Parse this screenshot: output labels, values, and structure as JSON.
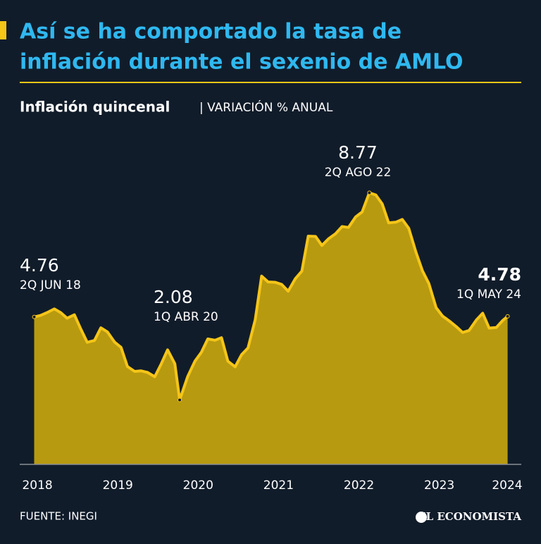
{
  "chart_data": {
    "type": "area",
    "title": "Así se ha comportado la tasa de",
    "title_line2": "inflación durante el sexenio de AMLO",
    "subtitle": "Inflación quincenal",
    "subtitle_unit": "| VARIACIÓN % ANUAL",
    "source": "FUENTE: INEGI",
    "brand": "EL ECONOMISTA",
    "color": "#f5c518",
    "fill": "#b89a10",
    "x": [
      2018.46,
      2018.54,
      2018.62,
      2018.71,
      2018.79,
      2018.87,
      2018.96,
      2019.04,
      2019.12,
      2019.21,
      2019.29,
      2019.37,
      2019.46,
      2019.54,
      2019.62,
      2019.71,
      2019.79,
      2019.87,
      2019.96,
      2020.04,
      2020.12,
      2020.21,
      2020.27,
      2020.37,
      2020.46,
      2020.54,
      2020.62,
      2020.71,
      2020.79,
      2020.87,
      2020.96,
      2021.04,
      2021.12,
      2021.21,
      2021.29,
      2021.37,
      2021.46,
      2021.54,
      2021.62,
      2021.71,
      2021.79,
      2021.87,
      2021.96,
      2022.04,
      2022.12,
      2022.21,
      2022.29,
      2022.37,
      2022.46,
      2022.54,
      2022.63,
      2022.71,
      2022.79,
      2022.87,
      2022.96,
      2023.04,
      2023.12,
      2023.21,
      2023.29,
      2023.37,
      2023.46,
      2023.54,
      2023.62,
      2023.71,
      2023.79,
      2023.87,
      2023.96,
      2024.04,
      2024.12,
      2024.21,
      2024.29,
      2024.35
    ],
    "values": [
      4.76,
      4.81,
      4.9,
      5.02,
      4.9,
      4.72,
      4.83,
      4.37,
      3.94,
      4.0,
      4.41,
      4.28,
      3.95,
      3.78,
      3.16,
      3.0,
      3.02,
      2.97,
      2.83,
      3.24,
      3.7,
      3.25,
      2.08,
      2.84,
      3.33,
      3.62,
      4.05,
      4.01,
      4.09,
      3.33,
      3.15,
      3.54,
      3.76,
      4.67,
      6.08,
      5.89,
      5.88,
      5.81,
      5.59,
      6.0,
      6.24,
      7.37,
      7.36,
      7.07,
      7.28,
      7.45,
      7.68,
      7.65,
      7.99,
      8.15,
      8.77,
      8.7,
      8.41,
      7.8,
      7.82,
      7.91,
      7.62,
      6.85,
      6.25,
      5.84,
      5.06,
      4.79,
      4.64,
      4.45,
      4.26,
      4.32,
      4.66,
      4.88,
      4.4,
      4.42,
      4.65,
      4.78
    ],
    "xlim": [
      2018.28,
      2024.52
    ],
    "ylim": [
      0,
      10
    ],
    "xticks": [
      2018,
      2019,
      2020,
      2021,
      2022,
      2023,
      2024
    ],
    "annotations": [
      {
        "x": 2018.46,
        "y": 4.76,
        "text": "2Q JUN 18"
      },
      {
        "x": 2020.27,
        "y": 2.08,
        "text": "1Q ABR 20"
      },
      {
        "x": 2022.63,
        "y": 8.77,
        "text": "2Q AGO 22"
      },
      {
        "x": 2024.35,
        "y": 4.78,
        "text": "1Q MAY 24"
      }
    ]
  }
}
